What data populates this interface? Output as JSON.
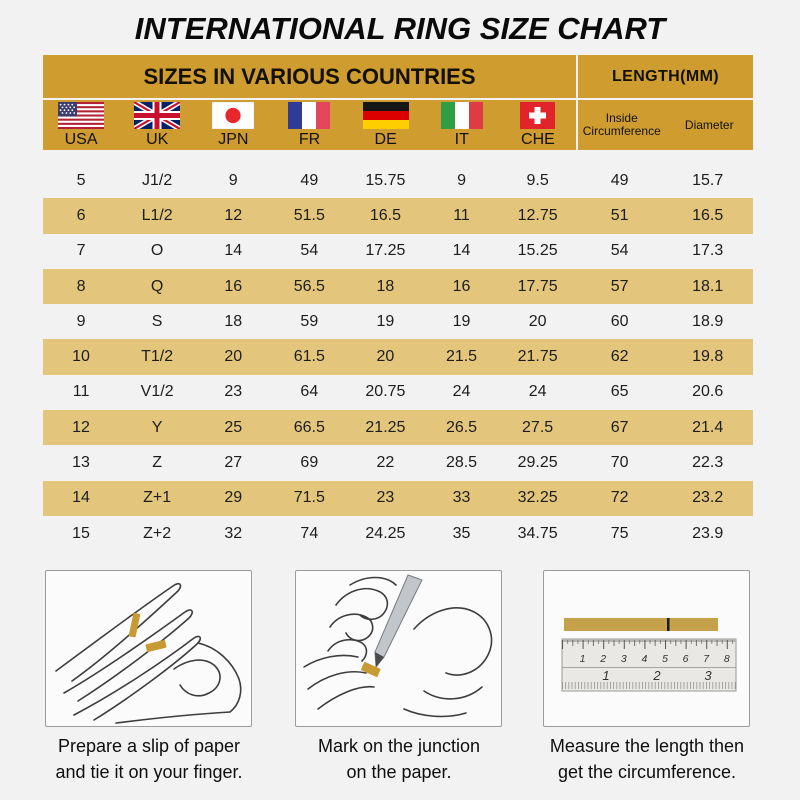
{
  "title": "INTERNATIONAL RING SIZE CHART",
  "table": {
    "header": {
      "countries": "SIZES IN VARIOUS COUNTRIES",
      "length": "LENGTH(MM)"
    },
    "country_columns": [
      {
        "label": "USA",
        "flag": "united-states-flag"
      },
      {
        "label": "UK",
        "flag": "united-kingdom-flag"
      },
      {
        "label": "JPN",
        "flag": "japan-flag"
      },
      {
        "label": "FR",
        "flag": "france-flag"
      },
      {
        "label": "DE",
        "flag": "germany-flag"
      },
      {
        "label": "IT",
        "flag": "italy-flag"
      },
      {
        "label": "CHE",
        "flag": "switzerland-flag"
      }
    ],
    "length_columns": [
      {
        "label_line1": "Inside",
        "label_line2": "Circumference"
      },
      {
        "label_line1": "Diameter",
        "label_line2": ""
      }
    ],
    "rows": [
      [
        "5",
        "J1/2",
        "9",
        "49",
        "15.75",
        "9",
        "9.5",
        "49",
        "15.7"
      ],
      [
        "6",
        "L1/2",
        "12",
        "51.5",
        "16.5",
        "11",
        "12.75",
        "51",
        "16.5"
      ],
      [
        "7",
        "O",
        "14",
        "54",
        "17.25",
        "14",
        "15.25",
        "54",
        "17.3"
      ],
      [
        "8",
        "Q",
        "16",
        "56.5",
        "18",
        "16",
        "17.75",
        "57",
        "18.1"
      ],
      [
        "9",
        "S",
        "18",
        "59",
        "19",
        "19",
        "20",
        "60",
        "18.9"
      ],
      [
        "10",
        "T1/2",
        "20",
        "61.5",
        "20",
        "21.5",
        "21.75",
        "62",
        "19.8"
      ],
      [
        "11",
        "V1/2",
        "23",
        "64",
        "20.75",
        "24",
        "24",
        "65",
        "20.6"
      ],
      [
        "12",
        "Y",
        "25",
        "66.5",
        "21.25",
        "26.5",
        "27.5",
        "67",
        "21.4"
      ],
      [
        "13",
        "Z",
        "27",
        "69",
        "22",
        "28.5",
        "29.25",
        "70",
        "22.3"
      ],
      [
        "14",
        "Z+1",
        "29",
        "71.5",
        "23",
        "33",
        "32.25",
        "72",
        "23.2"
      ],
      [
        "15",
        "Z+2",
        "32",
        "74",
        "24.25",
        "35",
        "34.75",
        "75",
        "23.9"
      ]
    ]
  },
  "instructions": [
    {
      "illustration": "hand-with-paper-strip",
      "caption_line1": "Prepare a slip of paper",
      "caption_line2": "and tie it on your finger."
    },
    {
      "illustration": "pen-marking-paper",
      "caption_line1": "Mark on the junction",
      "caption_line2": "on the paper."
    },
    {
      "illustration": "ruler-measuring-strip",
      "caption_line1": "Measure the length then",
      "caption_line2": "get the circumference."
    }
  ],
  "ruler": {
    "cm_labels": [
      "1",
      "2",
      "3",
      "4",
      "5",
      "6",
      "7",
      "8"
    ],
    "inch_labels": [
      "1",
      "2",
      "3"
    ]
  },
  "colors": {
    "header_gold": "#CE9C2F",
    "highlight_row_tan": "#E3C67C",
    "page_background": "#F2F2F2",
    "paper_strip_gold": "#C79A33"
  }
}
